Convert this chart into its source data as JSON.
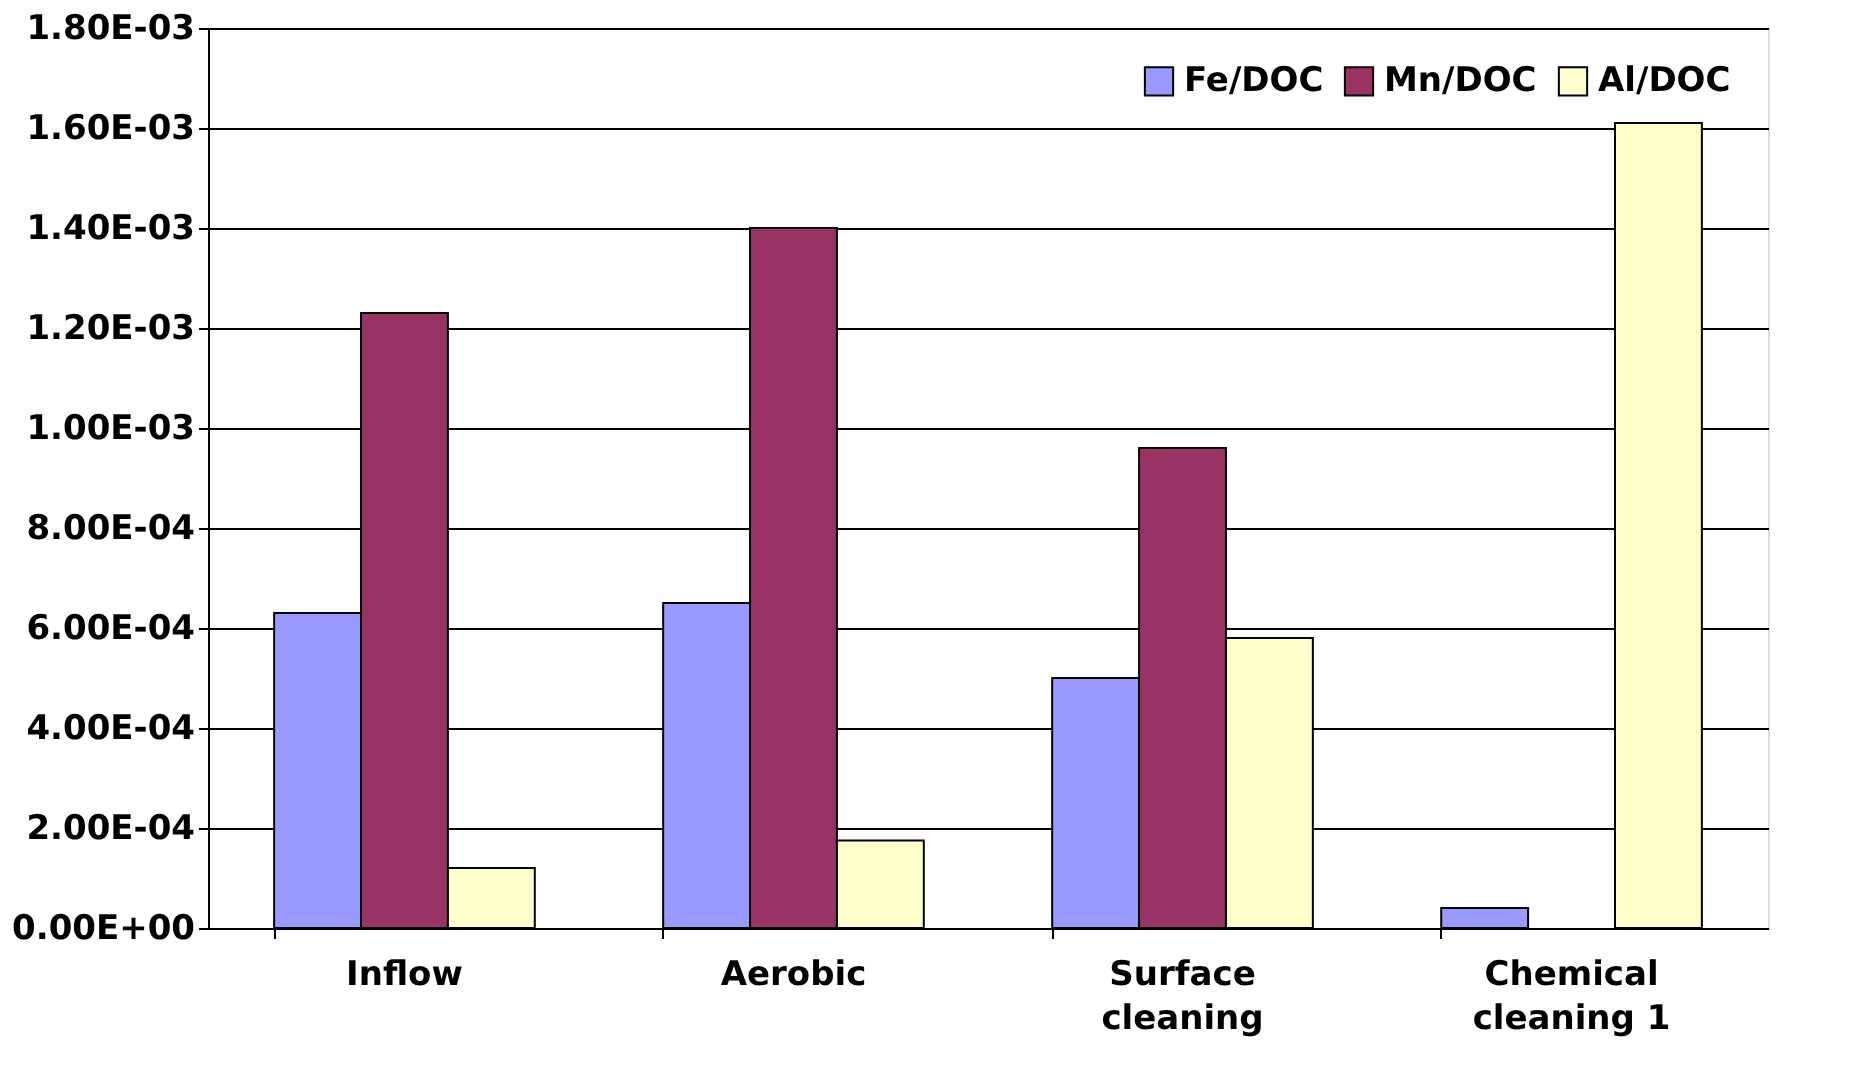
{
  "chart_data": {
    "type": "bar",
    "categories": [
      "Inflow",
      "Aerobic",
      "Surface cleaning",
      "Chemical cleaning 1"
    ],
    "series": [
      {
        "name": "Fe/DOC",
        "color": "#9999ff",
        "values": [
          0.00063,
          0.00065,
          0.0005,
          4e-05
        ]
      },
      {
        "name": "Mn/DOC",
        "color": "#993366",
        "values": [
          0.00123,
          0.0014,
          0.00096,
          null
        ]
      },
      {
        "name": "Al/DOC",
        "color": "#ffffcc",
        "values": [
          0.00012,
          0.000175,
          0.00058,
          0.00161
        ]
      }
    ],
    "ylim": [
      0,
      0.0018
    ],
    "yticks": [
      {
        "value": 0,
        "label": "0.00E+00"
      },
      {
        "value": 0.0002,
        "label": "2.00E-04"
      },
      {
        "value": 0.0004,
        "label": "4.00E-04"
      },
      {
        "value": 0.0006,
        "label": "6.00E-04"
      },
      {
        "value": 0.0008,
        "label": "8.00E-04"
      },
      {
        "value": 0.001,
        "label": "1.00E-03"
      },
      {
        "value": 0.0012,
        "label": "1.20E-03"
      },
      {
        "value": 0.0014,
        "label": "1.40E-03"
      },
      {
        "value": 0.0016,
        "label": "1.60E-03"
      },
      {
        "value": 0.0018,
        "label": "1.80E-03"
      }
    ],
    "grid": "y",
    "legend": "top right"
  }
}
